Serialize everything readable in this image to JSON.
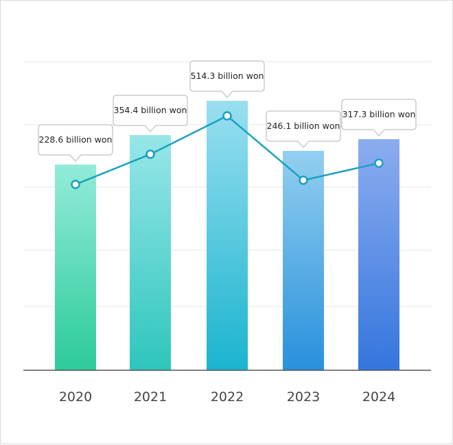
{
  "chart_data": {
    "type": "bar",
    "categories": [
      "2020",
      "2021",
      "2022",
      "2023",
      "2024"
    ],
    "series": [
      {
        "type": "bar",
        "values": [
          300,
          343,
          393,
          320,
          337
        ]
      },
      {
        "type": "line",
        "values": [
          228.6,
          354.4,
          514.3,
          246.1,
          317.3
        ]
      }
    ],
    "data_labels": [
      "228.6 billion won",
      "354.4 billion won",
      "514.3 billion won",
      "246.1 billion won",
      "317.3 billion won"
    ],
    "title": "",
    "xlabel": "",
    "ylabel": "",
    "grid": true,
    "legend": "none",
    "colors": {
      "bar_gradients": [
        [
          "#93ebd8",
          "#2ccb9a"
        ],
        [
          "#98e6e8",
          "#2ec6bd"
        ],
        [
          "#99dff0",
          "#1ab4cf"
        ],
        [
          "#93cfef",
          "#2890dc"
        ],
        [
          "#8cacef",
          "#3476de"
        ]
      ],
      "line": "#1aa0c0",
      "grid": "#e6e6e6",
      "axis": "#555555",
      "callout_border": "#cccccc"
    }
  }
}
